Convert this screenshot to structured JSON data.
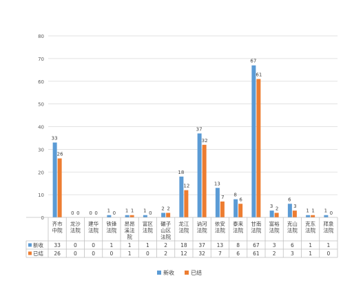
{
  "chart_data": {
    "type": "bar",
    "categories": [
      [
        "齐市",
        "中院"
      ],
      [
        "龙沙",
        "法院"
      ],
      [
        "建华",
        "法院"
      ],
      [
        "铁锋",
        "法院"
      ],
      [
        "昂昂",
        "溪法",
        "院"
      ],
      [
        "富区",
        "法院"
      ],
      [
        "碾子",
        "山区",
        "法院"
      ],
      [
        "龙江",
        "法院"
      ],
      [
        "讷河",
        "法院"
      ],
      [
        "依安",
        "法院"
      ],
      [
        "泰来",
        "法院"
      ],
      [
        "甘南",
        "法院"
      ],
      [
        "富裕",
        "法院"
      ],
      [
        "克山",
        "法院"
      ],
      [
        "克东",
        "法院"
      ],
      [
        "拜泉",
        "法院"
      ]
    ],
    "series": [
      {
        "name": "新收",
        "color": "#5B9BD5",
        "values": [
          33,
          0,
          0,
          1,
          1,
          1,
          2,
          18,
          37,
          13,
          8,
          67,
          3,
          6,
          1,
          1
        ]
      },
      {
        "name": "已结",
        "color": "#ED7D31",
        "values": [
          26,
          0,
          0,
          0,
          1,
          0,
          2,
          12,
          32,
          7,
          6,
          61,
          2,
          3,
          1,
          0
        ]
      }
    ],
    "ylim": [
      0,
      80
    ],
    "yticks": [
      0,
      10,
      20,
      30,
      40,
      50,
      60,
      70,
      80
    ],
    "grid": true,
    "legend": "bottom",
    "data_table": true,
    "title": "",
    "xlabel": "",
    "ylabel": ""
  }
}
